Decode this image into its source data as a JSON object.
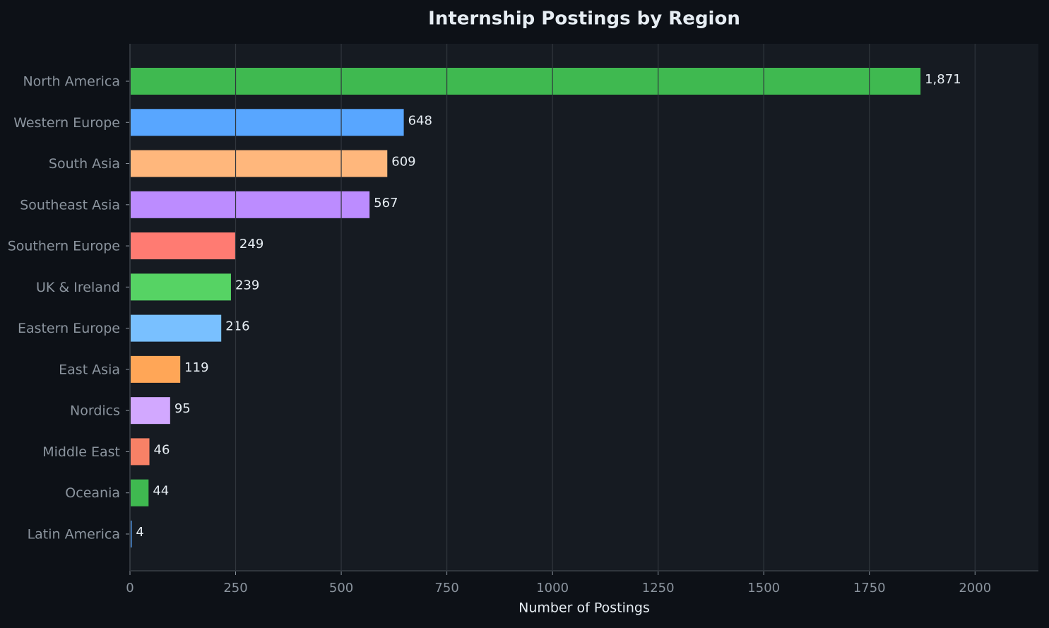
{
  "chart_data": {
    "type": "bar",
    "orientation": "horizontal",
    "title": "Internship Postings by Region",
    "x_label": "Number of Postings",
    "categories": [
      "North America",
      "Western Europe",
      "South Asia",
      "Southeast Asia",
      "Southern Europe",
      "UK & Ireland",
      "Eastern Europe",
      "East Asia",
      "Nordics",
      "Middle East",
      "Oceania",
      "Latin America"
    ],
    "values": [
      1871,
      648,
      609,
      567,
      249,
      239,
      216,
      119,
      95,
      46,
      44,
      4
    ],
    "value_labels": [
      "1,871",
      "648",
      "609",
      "567",
      "249",
      "239",
      "216",
      "119",
      "95",
      "46",
      "44",
      "4"
    ],
    "colors": [
      "#3fb950",
      "#58a6ff",
      "#ffb77c",
      "#bc8cff",
      "#ff7b72",
      "#56d364",
      "#79c0ff",
      "#ffa657",
      "#d2a8ff",
      "#f78166",
      "#3fb950",
      "#58a6ff"
    ],
    "xlim": [
      0,
      2150
    ],
    "xticks": [
      0,
      250,
      500,
      750,
      1000,
      1250,
      1500,
      1750,
      2000
    ],
    "grid": true
  }
}
